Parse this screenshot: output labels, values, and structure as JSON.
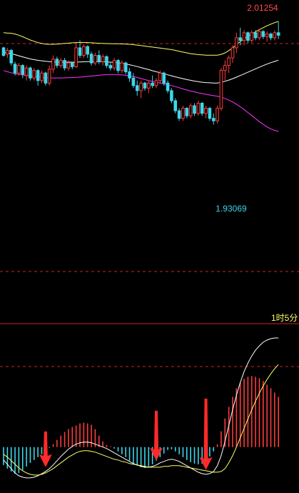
{
  "colors": {
    "background": "#000000",
    "up": "#ff3b3b",
    "down": "#3dd6e8",
    "upper_band": "#ffff66",
    "middle_band": "#ffffff",
    "lower_band": "#ff33ff",
    "guide_line": "#d22222",
    "macd_dif": "#ffffff",
    "macd_dea": "#ffff66",
    "arrow": "#ff2a2a",
    "high_label": "#ff4a4a",
    "low_label": "#3dd6e8",
    "period_label": "#ffff66"
  },
  "labels": {
    "high_value": "2.01254",
    "low_value": "1.93069",
    "period": "1时5分"
  },
  "chart_data": [
    {
      "type": "candlestick",
      "title": "",
      "ylim": [
        1.82,
        2.03
      ],
      "x_count": 73,
      "series": [
        {
          "kind": "candles",
          "ohlc": [
            [
              1.992,
              1.993,
              1.985,
              1.986
            ],
            [
              1.987,
              1.992,
              1.984,
              1.99
            ],
            [
              1.99,
              1.991,
              1.978,
              1.98
            ],
            [
              1.979,
              1.981,
              1.97,
              1.972
            ],
            [
              1.972,
              1.98,
              1.97,
              1.978
            ],
            [
              1.978,
              1.979,
              1.968,
              1.971
            ],
            [
              1.97,
              1.978,
              1.966,
              1.976
            ],
            [
              1.976,
              1.977,
              1.966,
              1.968
            ],
            [
              1.968,
              1.976,
              1.966,
              1.974
            ],
            [
              1.974,
              1.975,
              1.962,
              1.966
            ],
            [
              1.966,
              1.974,
              1.964,
              1.972
            ],
            [
              1.972,
              1.973,
              1.962,
              1.964
            ],
            [
              1.964,
              1.978,
              1.962,
              1.975
            ],
            [
              1.975,
              1.986,
              1.972,
              1.983
            ],
            [
              1.983,
              1.985,
              1.976,
              1.978
            ],
            [
              1.978,
              1.984,
              1.976,
              1.982
            ],
            [
              1.982,
              1.984,
              1.974,
              1.976
            ],
            [
              1.976,
              1.982,
              1.974,
              1.98
            ],
            [
              1.98,
              1.981,
              1.975,
              1.977
            ],
            [
              1.977,
              1.995,
              1.976,
              1.992
            ],
            [
              1.992,
              1.998,
              1.984,
              1.986
            ],
            [
              1.986,
              1.995,
              1.984,
              1.993
            ],
            [
              1.993,
              1.994,
              1.984,
              1.987
            ],
            [
              1.987,
              1.989,
              1.978,
              1.98
            ],
            [
              1.98,
              1.988,
              1.978,
              1.986
            ],
            [
              1.986,
              1.99,
              1.979,
              1.981
            ],
            [
              1.981,
              1.987,
              1.978,
              1.985
            ],
            [
              1.985,
              1.986,
              1.976,
              1.978
            ],
            [
              1.978,
              1.98,
              1.974,
              1.976
            ],
            [
              1.976,
              1.984,
              1.974,
              1.982
            ],
            [
              1.982,
              1.983,
              1.972,
              1.974
            ],
            [
              1.974,
              1.982,
              1.972,
              1.98
            ],
            [
              1.98,
              1.981,
              1.971,
              1.973
            ],
            [
              1.973,
              1.976,
              1.965,
              1.968
            ],
            [
              1.968,
              1.972,
              1.96,
              1.962
            ],
            [
              1.962,
              1.966,
              1.954,
              1.958
            ],
            [
              1.958,
              1.966,
              1.952,
              1.964
            ],
            [
              1.964,
              1.965,
              1.958,
              1.96
            ],
            [
              1.96,
              1.966,
              1.956,
              1.964
            ],
            [
              1.964,
              1.97,
              1.96,
              1.962
            ],
            [
              1.962,
              1.968,
              1.96,
              1.966
            ],
            [
              1.966,
              1.974,
              1.964,
              1.972
            ],
            [
              1.972,
              1.973,
              1.962,
              1.964
            ],
            [
              1.964,
              1.966,
              1.956,
              1.958
            ],
            [
              1.958,
              1.96,
              1.948,
              1.95
            ],
            [
              1.95,
              1.952,
              1.94,
              1.942
            ],
            [
              1.942,
              1.944,
              1.934,
              1.936
            ],
            [
              1.936,
              1.946,
              1.934,
              1.944
            ],
            [
              1.944,
              1.945,
              1.936,
              1.938
            ],
            [
              1.938,
              1.948,
              1.936,
              1.946
            ],
            [
              1.946,
              1.948,
              1.938,
              1.94
            ],
            [
              1.94,
              1.95,
              1.938,
              1.948
            ],
            [
              1.948,
              1.949,
              1.938,
              1.94
            ],
            [
              1.94,
              1.946,
              1.936,
              1.944
            ],
            [
              1.944,
              1.945,
              1.934,
              1.936
            ],
            [
              1.936,
              1.94,
              1.931,
              1.934
            ],
            [
              1.934,
              1.946,
              1.932,
              1.944
            ],
            [
              1.944,
              1.976,
              1.942,
              1.974
            ],
            [
              1.974,
              1.982,
              1.966,
              1.978
            ],
            [
              1.978,
              1.986,
              1.972,
              1.984
            ],
            [
              1.984,
              1.994,
              1.98,
              1.992
            ],
            [
              1.992,
              2.004,
              1.988,
              2.0
            ],
            [
              2.0,
              2.008,
              1.994,
              1.998
            ],
            [
              1.998,
              2.006,
              1.994,
              2.004
            ],
            [
              2.004,
              2.005,
              1.996,
              1.998
            ],
            [
              1.998,
              2.006,
              1.996,
              2.004
            ],
            [
              2.004,
              2.006,
              1.998,
              2.0
            ],
            [
              2.0,
              2.007,
              1.998,
              2.005
            ],
            [
              2.005,
              2.006,
              1.999,
              2.001
            ],
            [
              2.001,
              2.005,
              1.997,
              2.003
            ],
            [
              2.003,
              2.004,
              1.998,
              2.0
            ],
            [
              2.0,
              2.006,
              1.998,
              2.004
            ],
            [
              2.004,
              2.013,
              1.999,
              2.002
            ]
          ]
        },
        {
          "kind": "line",
          "role": "upper_band",
          "values": [
            2.004,
            2.0038,
            2.0036,
            2.003,
            2.002,
            2.0008,
            1.9995,
            1.9982,
            1.9972,
            1.9962,
            1.9955,
            1.995,
            1.9948,
            1.9948,
            1.995,
            1.9952,
            1.9955,
            1.9957,
            1.996,
            1.9962,
            1.9963,
            1.9963,
            1.9962,
            1.996,
            1.9958,
            1.9956,
            1.9955,
            1.9954,
            1.9953,
            1.9952,
            1.9952,
            1.9951,
            1.995,
            1.9948,
            1.9945,
            1.9942,
            1.9938,
            1.9934,
            1.993,
            1.9926,
            1.9922,
            1.9918,
            1.9914,
            1.991,
            1.9906,
            1.99,
            1.9893,
            1.9886,
            1.988,
            1.9874,
            1.987,
            1.9866,
            1.9864,
            1.9862,
            1.9861,
            1.9861,
            1.9861,
            1.9868,
            1.988,
            1.9898,
            1.992,
            1.9945,
            1.997,
            1.9992,
            2.0012,
            2.003,
            2.0048,
            2.0065,
            2.008,
            2.0095,
            2.0108,
            2.012,
            2.013
          ]
        },
        {
          "kind": "line",
          "role": "middle_band",
          "values": [
            1.9885,
            1.988,
            1.9874,
            1.9866,
            1.9857,
            1.9848,
            1.984,
            1.9832,
            1.9826,
            1.9821,
            1.9817,
            1.9813,
            1.981,
            1.9808,
            1.9807,
            1.9806,
            1.9806,
            1.9806,
            1.9806,
            1.9807,
            1.9808,
            1.9809,
            1.981,
            1.981,
            1.981,
            1.981,
            1.9809,
            1.9808,
            1.9806,
            1.9804,
            1.9801,
            1.9797,
            1.9792,
            1.9786,
            1.9779,
            1.9771,
            1.9763,
            1.9755,
            1.9747,
            1.9738,
            1.973,
            1.9722,
            1.9714,
            1.9706,
            1.9698,
            1.969,
            1.9682,
            1.9675,
            1.9668,
            1.9662,
            1.9656,
            1.9651,
            1.9647,
            1.9644,
            1.9642,
            1.964,
            1.964,
            1.9646,
            1.9654,
            1.9664,
            1.9675,
            1.9687,
            1.97,
            1.9713,
            1.9726,
            1.974,
            1.9753,
            1.9766,
            1.9779,
            1.9791,
            1.9802,
            1.9812,
            1.9822
          ]
        },
        {
          "kind": "line",
          "role": "lower_band",
          "values": [
            1.974,
            1.973,
            1.9722,
            1.9715,
            1.971,
            1.9705,
            1.97,
            1.9696,
            1.9692,
            1.9689,
            1.9686,
            1.9683,
            1.9682,
            1.9681,
            1.9681,
            1.9681,
            1.9682,
            1.9683,
            1.9684,
            1.9685,
            1.9687,
            1.969,
            1.9693,
            1.9696,
            1.9699,
            1.9702,
            1.9705,
            1.9707,
            1.9708,
            1.9708,
            1.9707,
            1.9705,
            1.9702,
            1.9698,
            1.9692,
            1.9684,
            1.9676,
            1.9668,
            1.966,
            1.9653,
            1.9647,
            1.964,
            1.9634,
            1.9627,
            1.962,
            1.9612,
            1.9603,
            1.9594,
            1.9585,
            1.9577,
            1.957,
            1.9563,
            1.9557,
            1.9551,
            1.9545,
            1.954,
            1.9536,
            1.9528,
            1.9518,
            1.9505,
            1.949,
            1.9472,
            1.9452,
            1.943,
            1.9406,
            1.9382,
            1.9358,
            1.9334,
            1.9312,
            1.9292,
            1.9276,
            1.9264,
            1.9256
          ]
        }
      ],
      "annotations": [
        {
          "text": "2.01254",
          "x_index": 72,
          "y": 2.01254
        },
        {
          "text": "1.93069",
          "x_index": 55,
          "y": 1.93069
        }
      ]
    },
    {
      "type": "bar",
      "title": "",
      "ylim": [
        -0.006,
        0.0155
      ],
      "x_count": 73,
      "series": [
        {
          "kind": "bars",
          "name": "",
          "values": [
            -0.0025,
            -0.003,
            -0.0034,
            -0.0037,
            -0.0036,
            -0.0032,
            -0.0027,
            -0.0022,
            -0.0018,
            -0.0014,
            -0.001,
            -0.0006,
            -0.0001,
            0.0004,
            0.001,
            0.0016,
            0.0021,
            0.0025,
            0.0028,
            0.003,
            0.0033,
            0.0034,
            0.0033,
            0.0031,
            0.0025,
            0.0016,
            0.0008,
            0.0003,
            0.0001,
            -0.0002,
            -0.0006,
            -0.001,
            -0.0014,
            -0.0019,
            -0.0023,
            -0.0026,
            -0.0028,
            -0.0029,
            -0.0028,
            -0.0024,
            -0.0019,
            -0.0014,
            -0.0009,
            -0.0004,
            -0.0003,
            -0.0006,
            -0.001,
            -0.0014,
            -0.0018,
            -0.0021,
            -0.0023,
            -0.0024,
            -0.0023,
            -0.0019,
            -0.0013,
            -0.0006,
            0.0004,
            0.0022,
            0.004,
            0.0056,
            0.007,
            0.0082,
            0.009,
            0.0095,
            0.0098,
            0.0099,
            0.0098,
            0.0096,
            0.0092,
            0.0087,
            0.0082,
            0.0076,
            0.007
          ]
        },
        {
          "kind": "line",
          "role": "macd_dif",
          "values": [
            -0.0018,
            -0.0024,
            -0.003,
            -0.0036,
            -0.004,
            -0.0042,
            -0.0043,
            -0.0043,
            -0.0042,
            -0.004,
            -0.0037,
            -0.0034,
            -0.003,
            -0.0025,
            -0.0019,
            -0.0013,
            -0.0008,
            -0.0003,
            0.0001,
            0.0004,
            0.0006,
            0.0007,
            0.0007,
            0.0006,
            0.0004,
            0.0002,
            0.0,
            -0.0002,
            -0.0005,
            -0.0008,
            -0.0011,
            -0.0014,
            -0.0017,
            -0.002,
            -0.0023,
            -0.0025,
            -0.0027,
            -0.0028,
            -0.0028,
            -0.0027,
            -0.0025,
            -0.0022,
            -0.002,
            -0.0018,
            -0.0017,
            -0.0018,
            -0.002,
            -0.0023,
            -0.0026,
            -0.0029,
            -0.0032,
            -0.0035,
            -0.0037,
            -0.0038,
            -0.0037,
            -0.0034,
            -0.0026,
            -0.0012,
            0.0008,
            0.003,
            0.0052,
            0.0072,
            0.009,
            0.0105,
            0.0117,
            0.0127,
            0.0135,
            0.0141,
            0.0146,
            0.0149,
            0.0151,
            0.0152,
            0.0152
          ]
        },
        {
          "kind": "line",
          "role": "macd_dea",
          "values": [
            -0.001,
            -0.0014,
            -0.0019,
            -0.0024,
            -0.0029,
            -0.0033,
            -0.0036,
            -0.0038,
            -0.0039,
            -0.0039,
            -0.0038,
            -0.0036,
            -0.0033,
            -0.003,
            -0.0026,
            -0.0022,
            -0.0018,
            -0.0014,
            -0.0011,
            -0.0008,
            -0.0006,
            -0.0005,
            -0.0005,
            -0.0006,
            -0.0007,
            -0.0009,
            -0.0011,
            -0.0013,
            -0.0015,
            -0.0017,
            -0.0018,
            -0.002,
            -0.0021,
            -0.0023,
            -0.0024,
            -0.0025,
            -0.0026,
            -0.0027,
            -0.0028,
            -0.0028,
            -0.0028,
            -0.0028,
            -0.0027,
            -0.0027,
            -0.0026,
            -0.0026,
            -0.0026,
            -0.0027,
            -0.0028,
            -0.0029,
            -0.003,
            -0.0031,
            -0.0032,
            -0.0033,
            -0.0034,
            -0.0035,
            -0.0035,
            -0.0034,
            -0.003,
            -0.0022,
            -0.0012,
            0.0,
            0.0013,
            0.0026,
            0.0039,
            0.0052,
            0.0064,
            0.0075,
            0.0085,
            0.0094,
            0.0102,
            0.0109,
            0.0115
          ]
        }
      ],
      "annotations": [
        {
          "kind": "arrow",
          "x_index": 11
        },
        {
          "kind": "arrow",
          "x_index": 40
        },
        {
          "kind": "arrow",
          "x_index": 53
        }
      ]
    }
  ]
}
